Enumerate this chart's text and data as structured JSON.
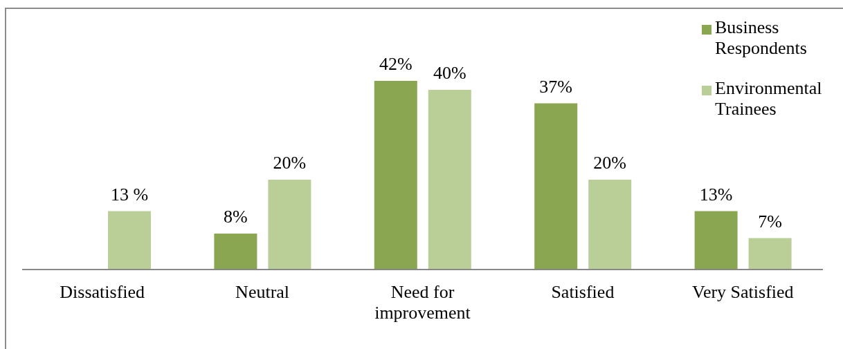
{
  "chart_data": {
    "type": "bar",
    "categories": [
      "Dissatisfied",
      "Neutral",
      "Need for improvement",
      "Satisfied",
      "Very Satisfied"
    ],
    "series": [
      {
        "name": "Business Respondents",
        "color": "#8ba650",
        "values": [
          null,
          8,
          42,
          37,
          13
        ],
        "value_labels": [
          null,
          "8%",
          "42%",
          "37%",
          "13%"
        ]
      },
      {
        "name": "Environmental Trainees",
        "color": "#bacf98",
        "values": [
          13,
          20,
          40,
          20,
          7
        ],
        "value_labels": [
          "13 %",
          "20%",
          "40%",
          "20%",
          "7%"
        ]
      }
    ],
    "tick_labels": "x",
    "legend": "top right"
  }
}
